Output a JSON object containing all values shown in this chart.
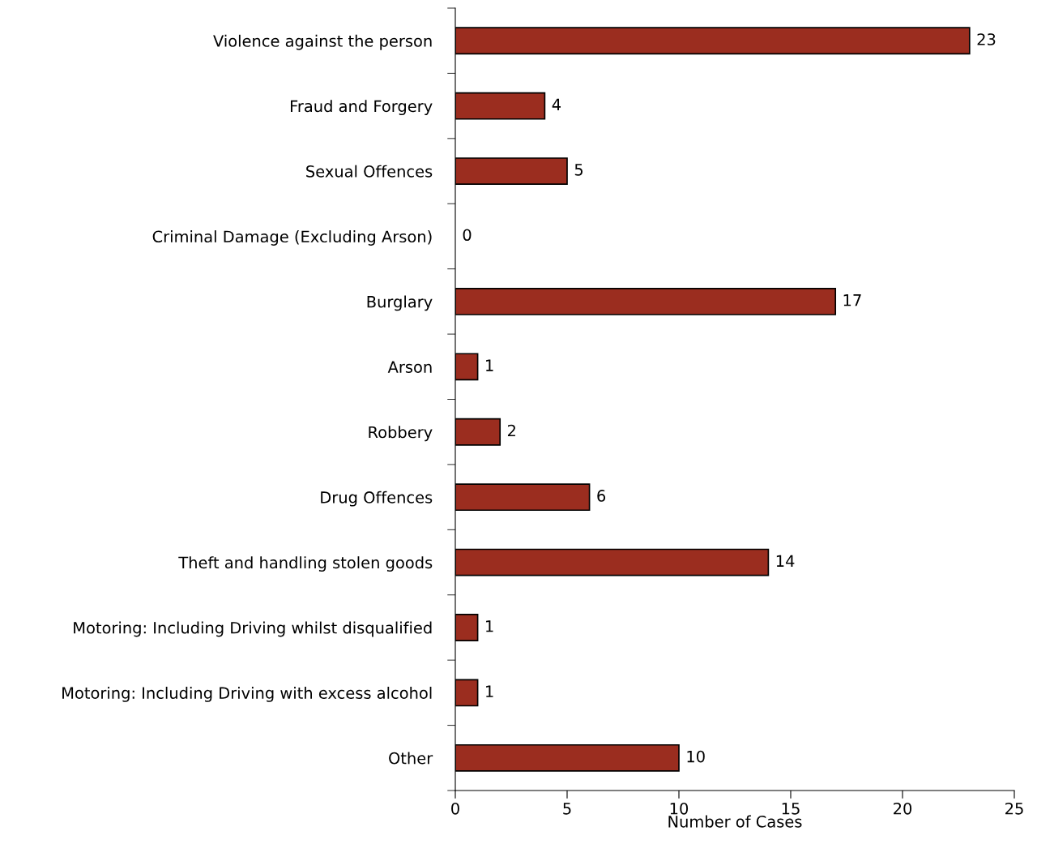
{
  "chart_data": {
    "type": "bar",
    "orientation": "horizontal",
    "xlabel": "Number of Cases",
    "categories": [
      "Violence against the person",
      "Fraud and Forgery",
      "Sexual Offences",
      "Criminal Damage (Excluding Arson)",
      "Burglary",
      "Arson",
      "Robbery",
      "Drug Offences",
      "Theft and handling stolen goods",
      "Motoring: Including Driving whilst disqualified",
      "Motoring: Including Driving with excess alcohol",
      "Other"
    ],
    "values": [
      23,
      4,
      5,
      0,
      17,
      1,
      2,
      6,
      14,
      1,
      1,
      10
    ],
    "color": "#9b2d1f",
    "xlim": [
      0,
      25
    ],
    "xticks": [
      0,
      5,
      10,
      15,
      20,
      25
    ],
    "grid": false,
    "legend": false,
    "data_labels": true
  }
}
